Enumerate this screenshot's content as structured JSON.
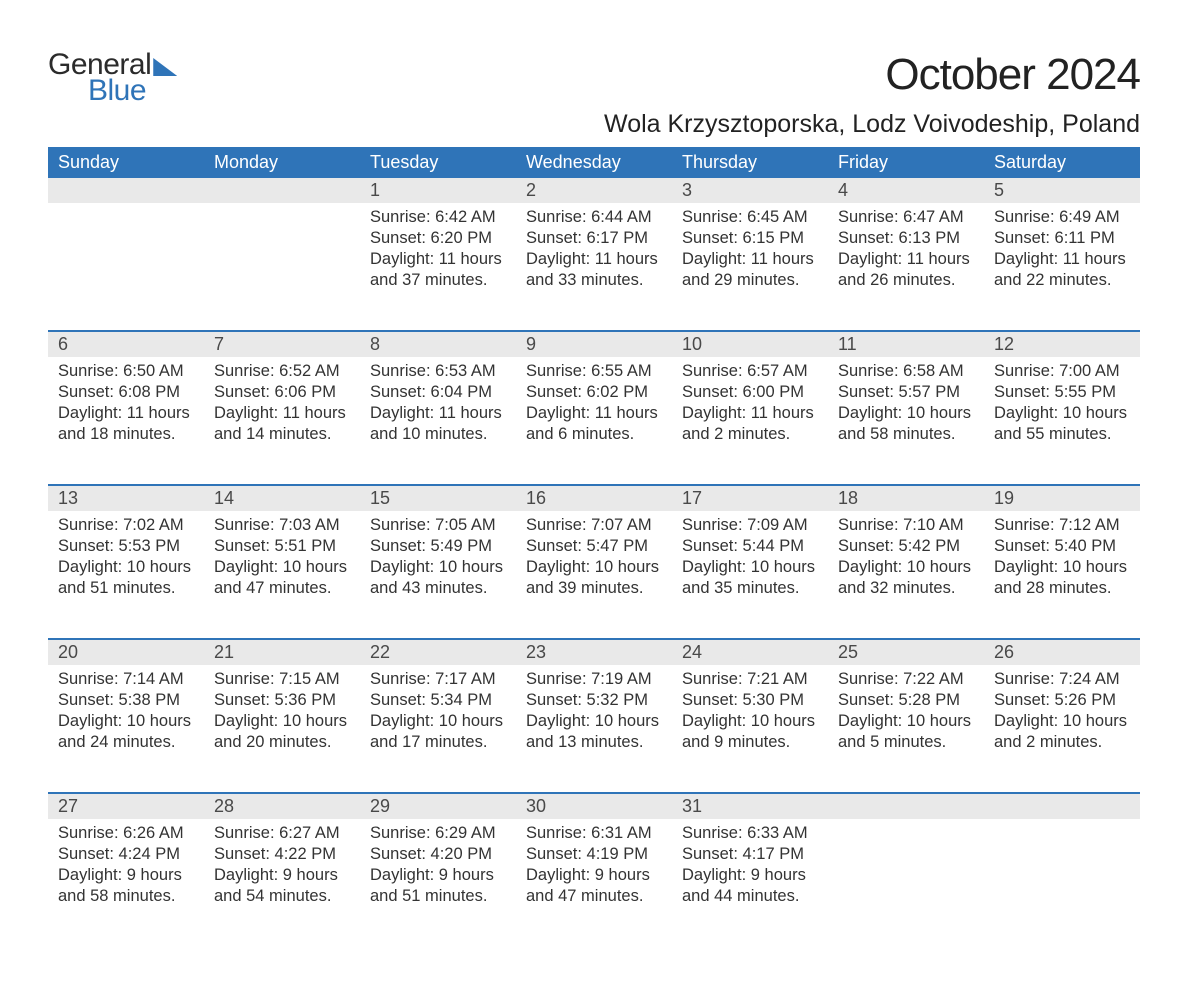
{
  "logo": {
    "text_general": "General",
    "text_blue": "Blue"
  },
  "header": {
    "month_title": "October 2024",
    "location": "Wola Krzysztoporska, Lodz Voivodeship, Poland"
  },
  "day_headers": [
    "Sunday",
    "Monday",
    "Tuesday",
    "Wednesday",
    "Thursday",
    "Friday",
    "Saturday"
  ],
  "colors": {
    "header_bg": "#2f74b8",
    "header_text": "#ffffff",
    "daynum_bg": "#e9e9e9",
    "daynum_border": "#2f74b8",
    "body_text": "#333333",
    "title_text": "#222222",
    "logo_blue": "#2f74b8",
    "logo_dark": "#2b2b2b",
    "background": "#ffffff"
  },
  "weeks": [
    [
      null,
      null,
      {
        "n": "1",
        "sunrise": "Sunrise: 6:42 AM",
        "sunset": "Sunset: 6:20 PM",
        "d1": "Daylight: 11 hours",
        "d2": "and 37 minutes."
      },
      {
        "n": "2",
        "sunrise": "Sunrise: 6:44 AM",
        "sunset": "Sunset: 6:17 PM",
        "d1": "Daylight: 11 hours",
        "d2": "and 33 minutes."
      },
      {
        "n": "3",
        "sunrise": "Sunrise: 6:45 AM",
        "sunset": "Sunset: 6:15 PM",
        "d1": "Daylight: 11 hours",
        "d2": "and 29 minutes."
      },
      {
        "n": "4",
        "sunrise": "Sunrise: 6:47 AM",
        "sunset": "Sunset: 6:13 PM",
        "d1": "Daylight: 11 hours",
        "d2": "and 26 minutes."
      },
      {
        "n": "5",
        "sunrise": "Sunrise: 6:49 AM",
        "sunset": "Sunset: 6:11 PM",
        "d1": "Daylight: 11 hours",
        "d2": "and 22 minutes."
      }
    ],
    [
      {
        "n": "6",
        "sunrise": "Sunrise: 6:50 AM",
        "sunset": "Sunset: 6:08 PM",
        "d1": "Daylight: 11 hours",
        "d2": "and 18 minutes."
      },
      {
        "n": "7",
        "sunrise": "Sunrise: 6:52 AM",
        "sunset": "Sunset: 6:06 PM",
        "d1": "Daylight: 11 hours",
        "d2": "and 14 minutes."
      },
      {
        "n": "8",
        "sunrise": "Sunrise: 6:53 AM",
        "sunset": "Sunset: 6:04 PM",
        "d1": "Daylight: 11 hours",
        "d2": "and 10 minutes."
      },
      {
        "n": "9",
        "sunrise": "Sunrise: 6:55 AM",
        "sunset": "Sunset: 6:02 PM",
        "d1": "Daylight: 11 hours",
        "d2": "and 6 minutes."
      },
      {
        "n": "10",
        "sunrise": "Sunrise: 6:57 AM",
        "sunset": "Sunset: 6:00 PM",
        "d1": "Daylight: 11 hours",
        "d2": "and 2 minutes."
      },
      {
        "n": "11",
        "sunrise": "Sunrise: 6:58 AM",
        "sunset": "Sunset: 5:57 PM",
        "d1": "Daylight: 10 hours",
        "d2": "and 58 minutes."
      },
      {
        "n": "12",
        "sunrise": "Sunrise: 7:00 AM",
        "sunset": "Sunset: 5:55 PM",
        "d1": "Daylight: 10 hours",
        "d2": "and 55 minutes."
      }
    ],
    [
      {
        "n": "13",
        "sunrise": "Sunrise: 7:02 AM",
        "sunset": "Sunset: 5:53 PM",
        "d1": "Daylight: 10 hours",
        "d2": "and 51 minutes."
      },
      {
        "n": "14",
        "sunrise": "Sunrise: 7:03 AM",
        "sunset": "Sunset: 5:51 PM",
        "d1": "Daylight: 10 hours",
        "d2": "and 47 minutes."
      },
      {
        "n": "15",
        "sunrise": "Sunrise: 7:05 AM",
        "sunset": "Sunset: 5:49 PM",
        "d1": "Daylight: 10 hours",
        "d2": "and 43 minutes."
      },
      {
        "n": "16",
        "sunrise": "Sunrise: 7:07 AM",
        "sunset": "Sunset: 5:47 PM",
        "d1": "Daylight: 10 hours",
        "d2": "and 39 minutes."
      },
      {
        "n": "17",
        "sunrise": "Sunrise: 7:09 AM",
        "sunset": "Sunset: 5:44 PM",
        "d1": "Daylight: 10 hours",
        "d2": "and 35 minutes."
      },
      {
        "n": "18",
        "sunrise": "Sunrise: 7:10 AM",
        "sunset": "Sunset: 5:42 PM",
        "d1": "Daylight: 10 hours",
        "d2": "and 32 minutes."
      },
      {
        "n": "19",
        "sunrise": "Sunrise: 7:12 AM",
        "sunset": "Sunset: 5:40 PM",
        "d1": "Daylight: 10 hours",
        "d2": "and 28 minutes."
      }
    ],
    [
      {
        "n": "20",
        "sunrise": "Sunrise: 7:14 AM",
        "sunset": "Sunset: 5:38 PM",
        "d1": "Daylight: 10 hours",
        "d2": "and 24 minutes."
      },
      {
        "n": "21",
        "sunrise": "Sunrise: 7:15 AM",
        "sunset": "Sunset: 5:36 PM",
        "d1": "Daylight: 10 hours",
        "d2": "and 20 minutes."
      },
      {
        "n": "22",
        "sunrise": "Sunrise: 7:17 AM",
        "sunset": "Sunset: 5:34 PM",
        "d1": "Daylight: 10 hours",
        "d2": "and 17 minutes."
      },
      {
        "n": "23",
        "sunrise": "Sunrise: 7:19 AM",
        "sunset": "Sunset: 5:32 PM",
        "d1": "Daylight: 10 hours",
        "d2": "and 13 minutes."
      },
      {
        "n": "24",
        "sunrise": "Sunrise: 7:21 AM",
        "sunset": "Sunset: 5:30 PM",
        "d1": "Daylight: 10 hours",
        "d2": "and 9 minutes."
      },
      {
        "n": "25",
        "sunrise": "Sunrise: 7:22 AM",
        "sunset": "Sunset: 5:28 PM",
        "d1": "Daylight: 10 hours",
        "d2": "and 5 minutes."
      },
      {
        "n": "26",
        "sunrise": "Sunrise: 7:24 AM",
        "sunset": "Sunset: 5:26 PM",
        "d1": "Daylight: 10 hours",
        "d2": "and 2 minutes."
      }
    ],
    [
      {
        "n": "27",
        "sunrise": "Sunrise: 6:26 AM",
        "sunset": "Sunset: 4:24 PM",
        "d1": "Daylight: 9 hours",
        "d2": "and 58 minutes."
      },
      {
        "n": "28",
        "sunrise": "Sunrise: 6:27 AM",
        "sunset": "Sunset: 4:22 PM",
        "d1": "Daylight: 9 hours",
        "d2": "and 54 minutes."
      },
      {
        "n": "29",
        "sunrise": "Sunrise: 6:29 AM",
        "sunset": "Sunset: 4:20 PM",
        "d1": "Daylight: 9 hours",
        "d2": "and 51 minutes."
      },
      {
        "n": "30",
        "sunrise": "Sunrise: 6:31 AM",
        "sunset": "Sunset: 4:19 PM",
        "d1": "Daylight: 9 hours",
        "d2": "and 47 minutes."
      },
      {
        "n": "31",
        "sunrise": "Sunrise: 6:33 AM",
        "sunset": "Sunset: 4:17 PM",
        "d1": "Daylight: 9 hours",
        "d2": "and 44 minutes."
      },
      null,
      null
    ]
  ]
}
